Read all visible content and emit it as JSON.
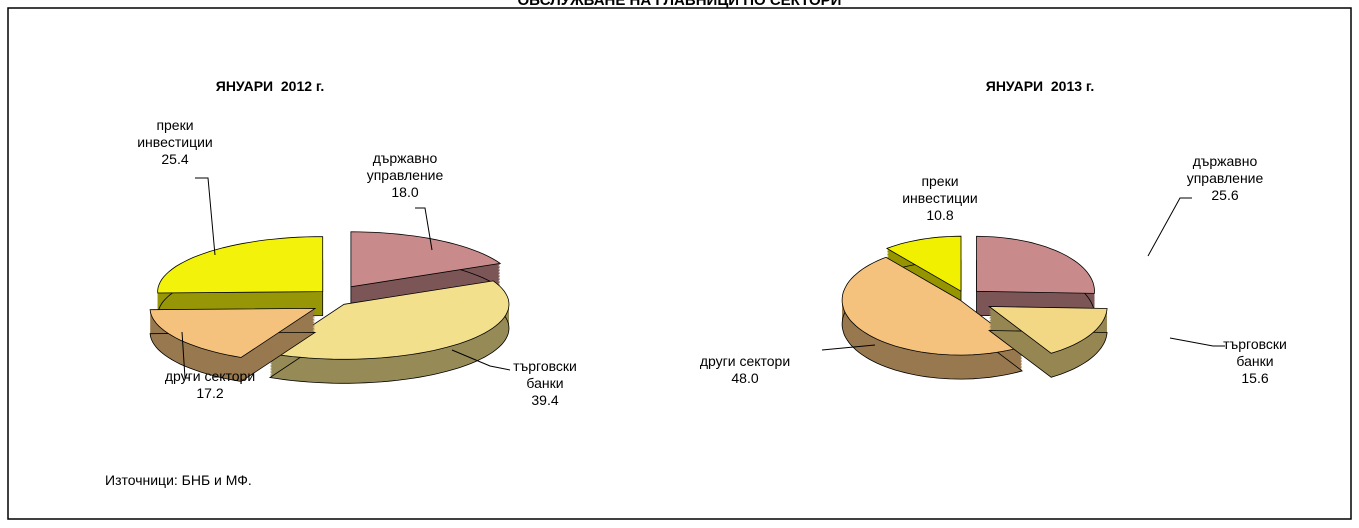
{
  "title": "ОБСЛУЖВАНЕ НА ГЛАВНИЦИ ПО СЕКТОРИ",
  "source": "Източници: БНБ и МФ.",
  "chart_data": [
    {
      "type": "pie",
      "title": "ЯНУАРИ  2012 г.",
      "categories": [
        "държавно управление",
        "търговски банки",
        "други сектори",
        "преки инвестиции"
      ],
      "values": [
        18.0,
        39.4,
        17.2,
        25.4
      ],
      "value_labels": [
        "18.0",
        "39.4",
        "17.2",
        "25.4"
      ],
      "colors": [
        "#c88a8a",
        "#f2e08c",
        "#f5c27e",
        "#f2f20a"
      ]
    },
    {
      "type": "pie",
      "title": "ЯНУАРИ  2013 г.",
      "categories": [
        "държавно управление",
        "търговски банки",
        "други сектори",
        "преки инвестиции"
      ],
      "values": [
        25.6,
        15.6,
        48.0,
        10.8
      ],
      "value_labels": [
        "25.6",
        "15.6",
        "48.0",
        "10.8"
      ],
      "colors": [
        "#c88a8a",
        "#f2d884",
        "#f5c27e",
        "#f0f000"
      ]
    }
  ]
}
